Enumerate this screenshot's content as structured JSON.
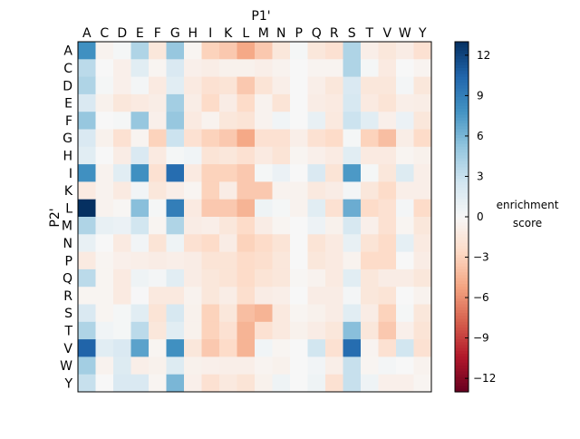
{
  "chart_data": {
    "type": "heatmap",
    "title": "P1'",
    "xlabel": "P1'",
    "ylabel": "P2'",
    "x_categories": [
      "A",
      "C",
      "D",
      "E",
      "F",
      "G",
      "H",
      "I",
      "K",
      "L",
      "M",
      "N",
      "P",
      "Q",
      "R",
      "S",
      "T",
      "V",
      "W",
      "Y"
    ],
    "y_categories": [
      "A",
      "C",
      "D",
      "E",
      "F",
      "G",
      "H",
      "I",
      "K",
      "L",
      "M",
      "N",
      "P",
      "Q",
      "R",
      "S",
      "T",
      "V",
      "W",
      "Y"
    ],
    "colorbar": {
      "label_line1": "enrichment",
      "label_line2": "score",
      "range": [
        -13,
        13
      ],
      "ticks": [
        12,
        9,
        6,
        3,
        0,
        -3,
        -6,
        -9,
        -12
      ],
      "colormap": "RdBu_r"
    },
    "values": [
      [
        8,
        -0.5,
        0.2,
        4,
        -1.5,
        5,
        -0.3,
        -3,
        -3.5,
        -5,
        -3.5,
        -1.5,
        0.2,
        -1.5,
        -2,
        4,
        -0.8,
        -1.5,
        -1,
        -2
      ],
      [
        3.5,
        0,
        -0.7,
        1.5,
        -0.3,
        2,
        -0.7,
        -0.9,
        -0.6,
        -0.6,
        -0.8,
        -0.5,
        0,
        -0.4,
        -0.4,
        4,
        0.2,
        -1.2,
        0,
        -0.4
      ],
      [
        4,
        0.2,
        -0.7,
        0.3,
        -1.2,
        1.5,
        -1.2,
        -2,
        -1.8,
        -3.5,
        -1.8,
        -0.8,
        0,
        -0.8,
        -1.5,
        2,
        -1.5,
        -1.5,
        0.3,
        -1.5
      ],
      [
        2,
        -0.6,
        -1.5,
        -1.2,
        -0.9,
        4.5,
        -0.9,
        -2.5,
        -1,
        -2.5,
        -0.5,
        -1.8,
        0,
        -1,
        -1.2,
        2.2,
        -1.2,
        -1.8,
        -0.8,
        -0.9
      ],
      [
        5,
        0,
        0.2,
        5,
        -0.7,
        5,
        -1.2,
        -0.5,
        -1.5,
        -1.8,
        -0.5,
        0.5,
        0,
        1,
        -1.3,
        2.8,
        1.5,
        -0.7,
        0.8,
        -1.5
      ],
      [
        2,
        -0.6,
        -2,
        -0.4,
        -3,
        2.8,
        -2,
        -3,
        -3.5,
        -5,
        -2,
        -2,
        -0.8,
        -2,
        -2.5,
        0.2,
        -3,
        -4,
        -0.9,
        -2.5
      ],
      [
        1.5,
        0,
        -1,
        2,
        -1.2,
        0.2,
        0.5,
        -1.8,
        -1.5,
        -2,
        -1.2,
        -1.8,
        -0.3,
        -0.7,
        -1.1,
        1.5,
        -1.2,
        -1.2,
        -0.3,
        -0.6
      ],
      [
        8,
        -0.5,
        1.5,
        8,
        -2,
        10,
        -1.2,
        -3,
        -3,
        -3.5,
        0.2,
        0.8,
        0,
        2,
        -1.8,
        7.5,
        0.2,
        -1.5,
        1.8,
        -0.8
      ],
      [
        -1.2,
        -0.5,
        -1.2,
        0.4,
        -1.5,
        -0.8,
        -0.3,
        -3,
        -1,
        -3.5,
        -3.5,
        -0.5,
        -0.5,
        -1.3,
        -1,
        0.3,
        -1.5,
        -2.5,
        -0.8,
        -0.8
      ],
      [
        13,
        -0.5,
        -0.2,
        5.5,
        0.2,
        9,
        -1.2,
        -3.5,
        -3.5,
        -4.5,
        0.6,
        0.2,
        -0.5,
        1.5,
        -2,
        6.5,
        -2.5,
        -2,
        0.3,
        -2.5
      ],
      [
        4,
        1,
        0.8,
        2.5,
        -0.3,
        4,
        -1,
        -0.8,
        -1.5,
        -2.5,
        -1,
        -0.3,
        0,
        0.7,
        -0.6,
        2.2,
        -0.7,
        -2,
        -0.3,
        -1.5
      ],
      [
        1,
        0,
        -1.2,
        0.4,
        -1.8,
        0.6,
        -2,
        -2.5,
        -1,
        -3,
        -2.5,
        -1.8,
        0,
        -1.8,
        -1.2,
        1,
        -1.8,
        -2.5,
        1.2,
        -1.2
      ],
      [
        -1.2,
        -0.3,
        -0.7,
        -0.8,
        -1,
        -0.8,
        -1,
        -1.8,
        -1.8,
        -2.5,
        -2.2,
        -1.5,
        0,
        -1.5,
        -1.2,
        -0.5,
        -2.5,
        -2.5,
        0,
        -1
      ],
      [
        3.5,
        -0.3,
        -1.2,
        0.6,
        0.3,
        1.5,
        -1,
        -1.5,
        -1.8,
        -2.5,
        -1.8,
        -1.5,
        -0.2,
        -0.5,
        -1.2,
        1.5,
        -1.5,
        -1,
        -1,
        -1.5
      ],
      [
        -0.3,
        -0.3,
        -1.2,
        0.1,
        -1.3,
        -1.3,
        -0.5,
        -1.5,
        -0.9,
        -2.2,
        -1,
        -0.8,
        0,
        -1,
        -1,
        0.3,
        -1.5,
        -1.8,
        0,
        -0.5
      ],
      [
        2,
        -0.3,
        0.2,
        1.5,
        -1.8,
        2.2,
        -0.6,
        -3,
        -1.5,
        -4,
        -4.5,
        -1.3,
        -0.3,
        -0.6,
        -1,
        1.5,
        -1,
        -3,
        0.2,
        -1.5
      ],
      [
        4,
        0.5,
        0.2,
        3.5,
        -1.5,
        1.5,
        -0.6,
        -3,
        -2,
        -4.5,
        -2,
        -1.3,
        -0.6,
        -1,
        -1.5,
        5.5,
        -1.5,
        -3.5,
        -0.7,
        -1.8
      ],
      [
        10.5,
        1.5,
        2,
        7,
        -0.3,
        8,
        -1.5,
        -3.5,
        -2.5,
        -4.5,
        0.5,
        -0.3,
        0,
        2.5,
        -2,
        10,
        -0.4,
        -2,
        2.5,
        -2
      ],
      [
        4.5,
        -0.5,
        1.8,
        -0.8,
        -0.6,
        1.8,
        -0.6,
        -0.7,
        -0.8,
        -0.8,
        -0.4,
        -0.6,
        0,
        0.4,
        -0.8,
        3,
        -0.3,
        0.3,
        0,
        -0.5
      ],
      [
        3,
        0,
        2,
        2,
        -0.3,
        6,
        -0.7,
        -2,
        -1.3,
        -1.8,
        -0.6,
        0.6,
        0,
        0.6,
        -2,
        3,
        0.6,
        -0.7,
        -0.7,
        -0.3
      ]
    ]
  }
}
